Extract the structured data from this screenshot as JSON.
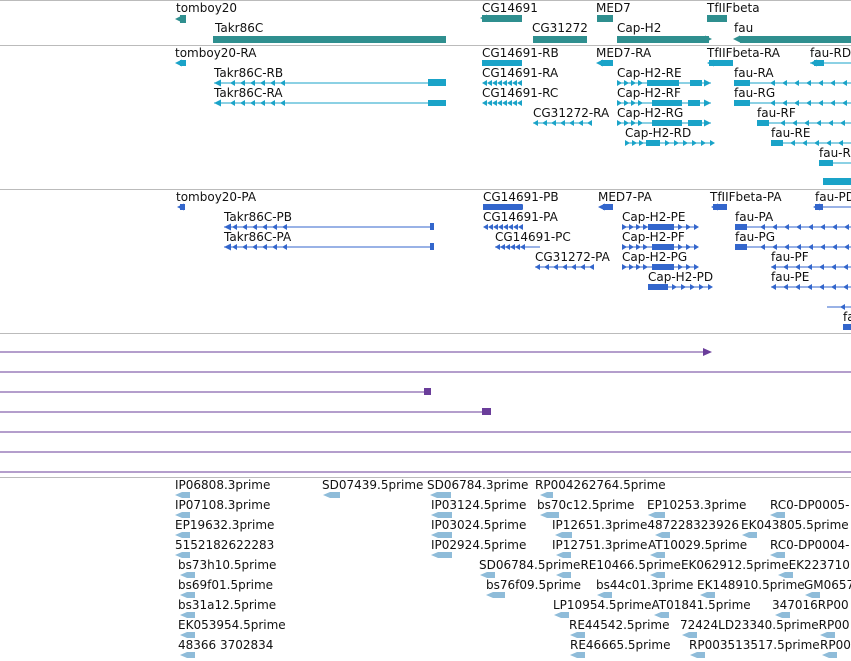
{
  "colors": {
    "gene": "#2f8f8f",
    "mrna": "#1aa3c8",
    "protein": "#3366cc",
    "line_track": "#6a3d9a",
    "est": "#8fbcd9"
  },
  "genes": [
    {
      "id": "g1",
      "label": "tomboy20"
    },
    {
      "id": "g2",
      "label": "Takr86C"
    },
    {
      "id": "g3",
      "label": "CG14691"
    },
    {
      "id": "g4",
      "label": "CG31272"
    },
    {
      "id": "g5",
      "label": "MED7"
    },
    {
      "id": "g6",
      "label": "Cap-H2"
    },
    {
      "id": "g7",
      "label": "TfIIFbeta"
    },
    {
      "id": "g8",
      "label": "fau"
    }
  ],
  "transcripts": [
    {
      "id": "t1",
      "label": "tomboy20-RA"
    },
    {
      "id": "t2",
      "label": "Takr86C-RB"
    },
    {
      "id": "t3",
      "label": "Takr86C-RA"
    },
    {
      "id": "t4",
      "label": "CG14691-RB"
    },
    {
      "id": "t5",
      "label": "CG14691-RA"
    },
    {
      "id": "t6",
      "label": "CG14691-RC"
    },
    {
      "id": "t7",
      "label": "CG31272-RA"
    },
    {
      "id": "t8",
      "label": "MED7-RA"
    },
    {
      "id": "t9",
      "label": "Cap-H2-RE"
    },
    {
      "id": "t10",
      "label": "Cap-H2-RF"
    },
    {
      "id": "t11",
      "label": "Cap-H2-RG"
    },
    {
      "id": "t12",
      "label": "Cap-H2-RD"
    },
    {
      "id": "t13",
      "label": "TfIIFbeta-RA"
    },
    {
      "id": "t14",
      "label": "fau-RD"
    },
    {
      "id": "t15",
      "label": "fau-RA"
    },
    {
      "id": "t16",
      "label": "fau-RG"
    },
    {
      "id": "t17",
      "label": "fau-RF"
    },
    {
      "id": "t18",
      "label": "fau-RE"
    },
    {
      "id": "t19",
      "label": "fau-R"
    }
  ],
  "proteins": [
    {
      "id": "p1",
      "label": "tomboy20-PA"
    },
    {
      "id": "p2",
      "label": "Takr86C-PB"
    },
    {
      "id": "p3",
      "label": "Takr86C-PA"
    },
    {
      "id": "p4",
      "label": "CG14691-PB"
    },
    {
      "id": "p5",
      "label": "CG14691-PA"
    },
    {
      "id": "p6",
      "label": "CG14691-PC"
    },
    {
      "id": "p7",
      "label": "CG31272-PA"
    },
    {
      "id": "p8",
      "label": "MED7-PA"
    },
    {
      "id": "p9",
      "label": "Cap-H2-PE"
    },
    {
      "id": "p10",
      "label": "Cap-H2-PF"
    },
    {
      "id": "p11",
      "label": "Cap-H2-PG"
    },
    {
      "id": "p12",
      "label": "Cap-H2-PD"
    },
    {
      "id": "p13",
      "label": "TfIIFbeta-PA"
    },
    {
      "id": "p14",
      "label": "fau-PD"
    },
    {
      "id": "p15",
      "label": "fau-PA"
    },
    {
      "id": "p16",
      "label": "fau-PG"
    },
    {
      "id": "p17",
      "label": "fau-PF"
    },
    {
      "id": "p18",
      "label": "fau-PE"
    },
    {
      "id": "p19",
      "label": "fa"
    }
  ],
  "ests": [
    {
      "id": "e1",
      "label": "IP06808.3prime"
    },
    {
      "id": "e2",
      "label": "SD07439.5prime"
    },
    {
      "id": "e3",
      "label": "SD06784.3prime"
    },
    {
      "id": "e4",
      "label": "RP004262764.5prime"
    },
    {
      "id": "e5",
      "label": "IP07108.3prime"
    },
    {
      "id": "e6",
      "label": "IP03124.5prime"
    },
    {
      "id": "e7",
      "label": "bs70c12.5prime"
    },
    {
      "id": "e8",
      "label": "EP10253.3prime"
    },
    {
      "id": "e9",
      "label": "RC0-DP0005-"
    },
    {
      "id": "e10",
      "label": "EP19632.3prime"
    },
    {
      "id": "e11",
      "label": "IP03024.5prime"
    },
    {
      "id": "e12",
      "label": "IP12651.3prime487228323926"
    },
    {
      "id": "e13",
      "label": "EK043805.5prime"
    },
    {
      "id": "e14",
      "label": "5152182622283"
    },
    {
      "id": "e15",
      "label": "IP02924.5prime"
    },
    {
      "id": "e16",
      "label": "IP12751.3prime"
    },
    {
      "id": "e17",
      "label": "AT10029.5prime"
    },
    {
      "id": "e18",
      "label": "RC0-DP0004-"
    },
    {
      "id": "e19",
      "label": "bs73h10.5prime"
    },
    {
      "id": "e20",
      "label": "SD06784.5primeRE10466.5primeEK062912.5primeEK223710"
    },
    {
      "id": "e21",
      "label": "bs69f01.5prime"
    },
    {
      "id": "e22",
      "label": "bs76f09.5prime"
    },
    {
      "id": "e23",
      "label": "bs44c01.3prime"
    },
    {
      "id": "e24",
      "label": "EK148910.5prime"
    },
    {
      "id": "e25",
      "label": "GM0657"
    },
    {
      "id": "e26",
      "label": "bs31a12.5prime"
    },
    {
      "id": "e27",
      "label": "LP10954.5primeAT01841.5prime"
    },
    {
      "id": "e28",
      "label": "347016RP00"
    },
    {
      "id": "e29",
      "label": "EK053954.5prime"
    },
    {
      "id": "e30",
      "label": "RE44542.5prime"
    },
    {
      "id": "e31",
      "label": "72424LD23340.5primeRP00"
    },
    {
      "id": "e32",
      "label": "48366 3702834"
    },
    {
      "id": "e33",
      "label": "RE46665.5prime"
    },
    {
      "id": "e34",
      "label": "RP003513517.5prime"
    },
    {
      "id": "e35",
      "label": "RP00"
    }
  ]
}
